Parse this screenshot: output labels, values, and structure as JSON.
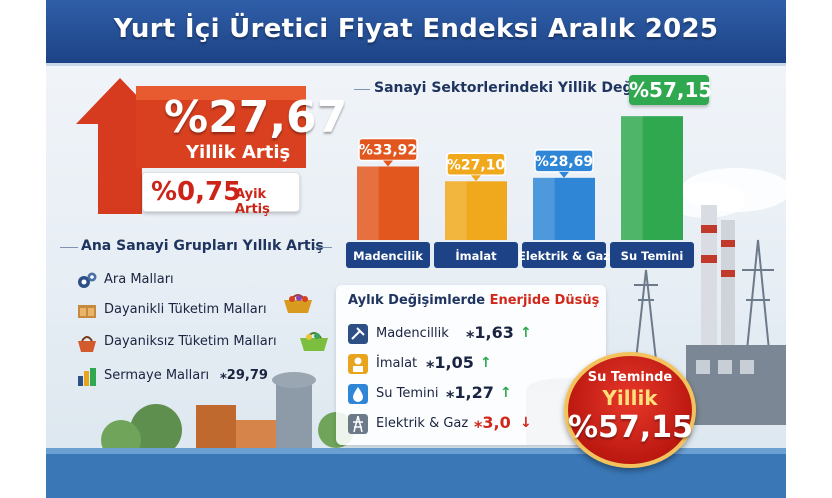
{
  "title": "Yurt İçi Üretici Fiyat Endeksi Aralık 2025",
  "headline": {
    "annual_value": "%27,67",
    "annual_label": "Yillik Artiş",
    "monthly_value": "%0,75",
    "monthly_label": "Ayik Artiş"
  },
  "groups": {
    "title": "Ana Sanayi Grupları Yıllık Artiş",
    "items": [
      {
        "label": "Ara Malları",
        "value": "",
        "icon": "gears-icon"
      },
      {
        "label": "Dayanikli Tüketim Malları",
        "value": "",
        "icon": "furniture-icon"
      },
      {
        "label": "Dayaniksız Tüketim Malları",
        "value": "",
        "icon": "basket-icon"
      },
      {
        "label": "Sermaye Malları",
        "value": "⁎29,79",
        "icon": "machinery-icon"
      }
    ]
  },
  "sector_chart": {
    "title": "Sanayi Sektorlerindeki Yillik Değişim",
    "total_label": "%57,15"
  },
  "chart_data": {
    "type": "bar",
    "title": "Sanayi Sektorlerindeki Yillik Değişim",
    "categories": [
      "Madencilik",
      "İmalat",
      "Elektrik & Gaz",
      "Su Temini"
    ],
    "values": [
      33.92,
      27.1,
      28.69,
      57.15
    ],
    "data_labels": [
      "%33,92",
      "%27,10",
      "%28,69",
      ""
    ],
    "colors": [
      "#e2571e",
      "#f0a91c",
      "#2f86d6",
      "#2fa84f"
    ],
    "ylim": [
      0,
      60
    ]
  },
  "monthly": {
    "title_prefix": "Aylık Değişimlerde ",
    "title_highlight": "Enerjide Düsüş",
    "items": [
      {
        "label": "Madencillik",
        "value": "⁎1,63",
        "arrow": "↑",
        "direction": "up",
        "icon": "mining-icon"
      },
      {
        "label": "İmalat",
        "value": "⁎1,05",
        "arrow": "↑",
        "direction": "up",
        "icon": "worker-icon"
      },
      {
        "label": "Su Temini",
        "value": "⁎1,27",
        "arrow": "↑",
        "direction": "up",
        "icon": "water-icon"
      },
      {
        "label": "Elektrik & Gaz",
        "value": "⁎3,0",
        "arrow": "↓",
        "direction": "down",
        "icon": "power-icon"
      }
    ]
  },
  "badge": {
    "line1": "Su Teminde",
    "line2": "Yillik",
    "line3": "%57,15"
  },
  "colors": {
    "title_bg": "#1d4386",
    "accent_red": "#d2281b",
    "up_green": "#2fa84f",
    "down_red": "#d2281b"
  }
}
